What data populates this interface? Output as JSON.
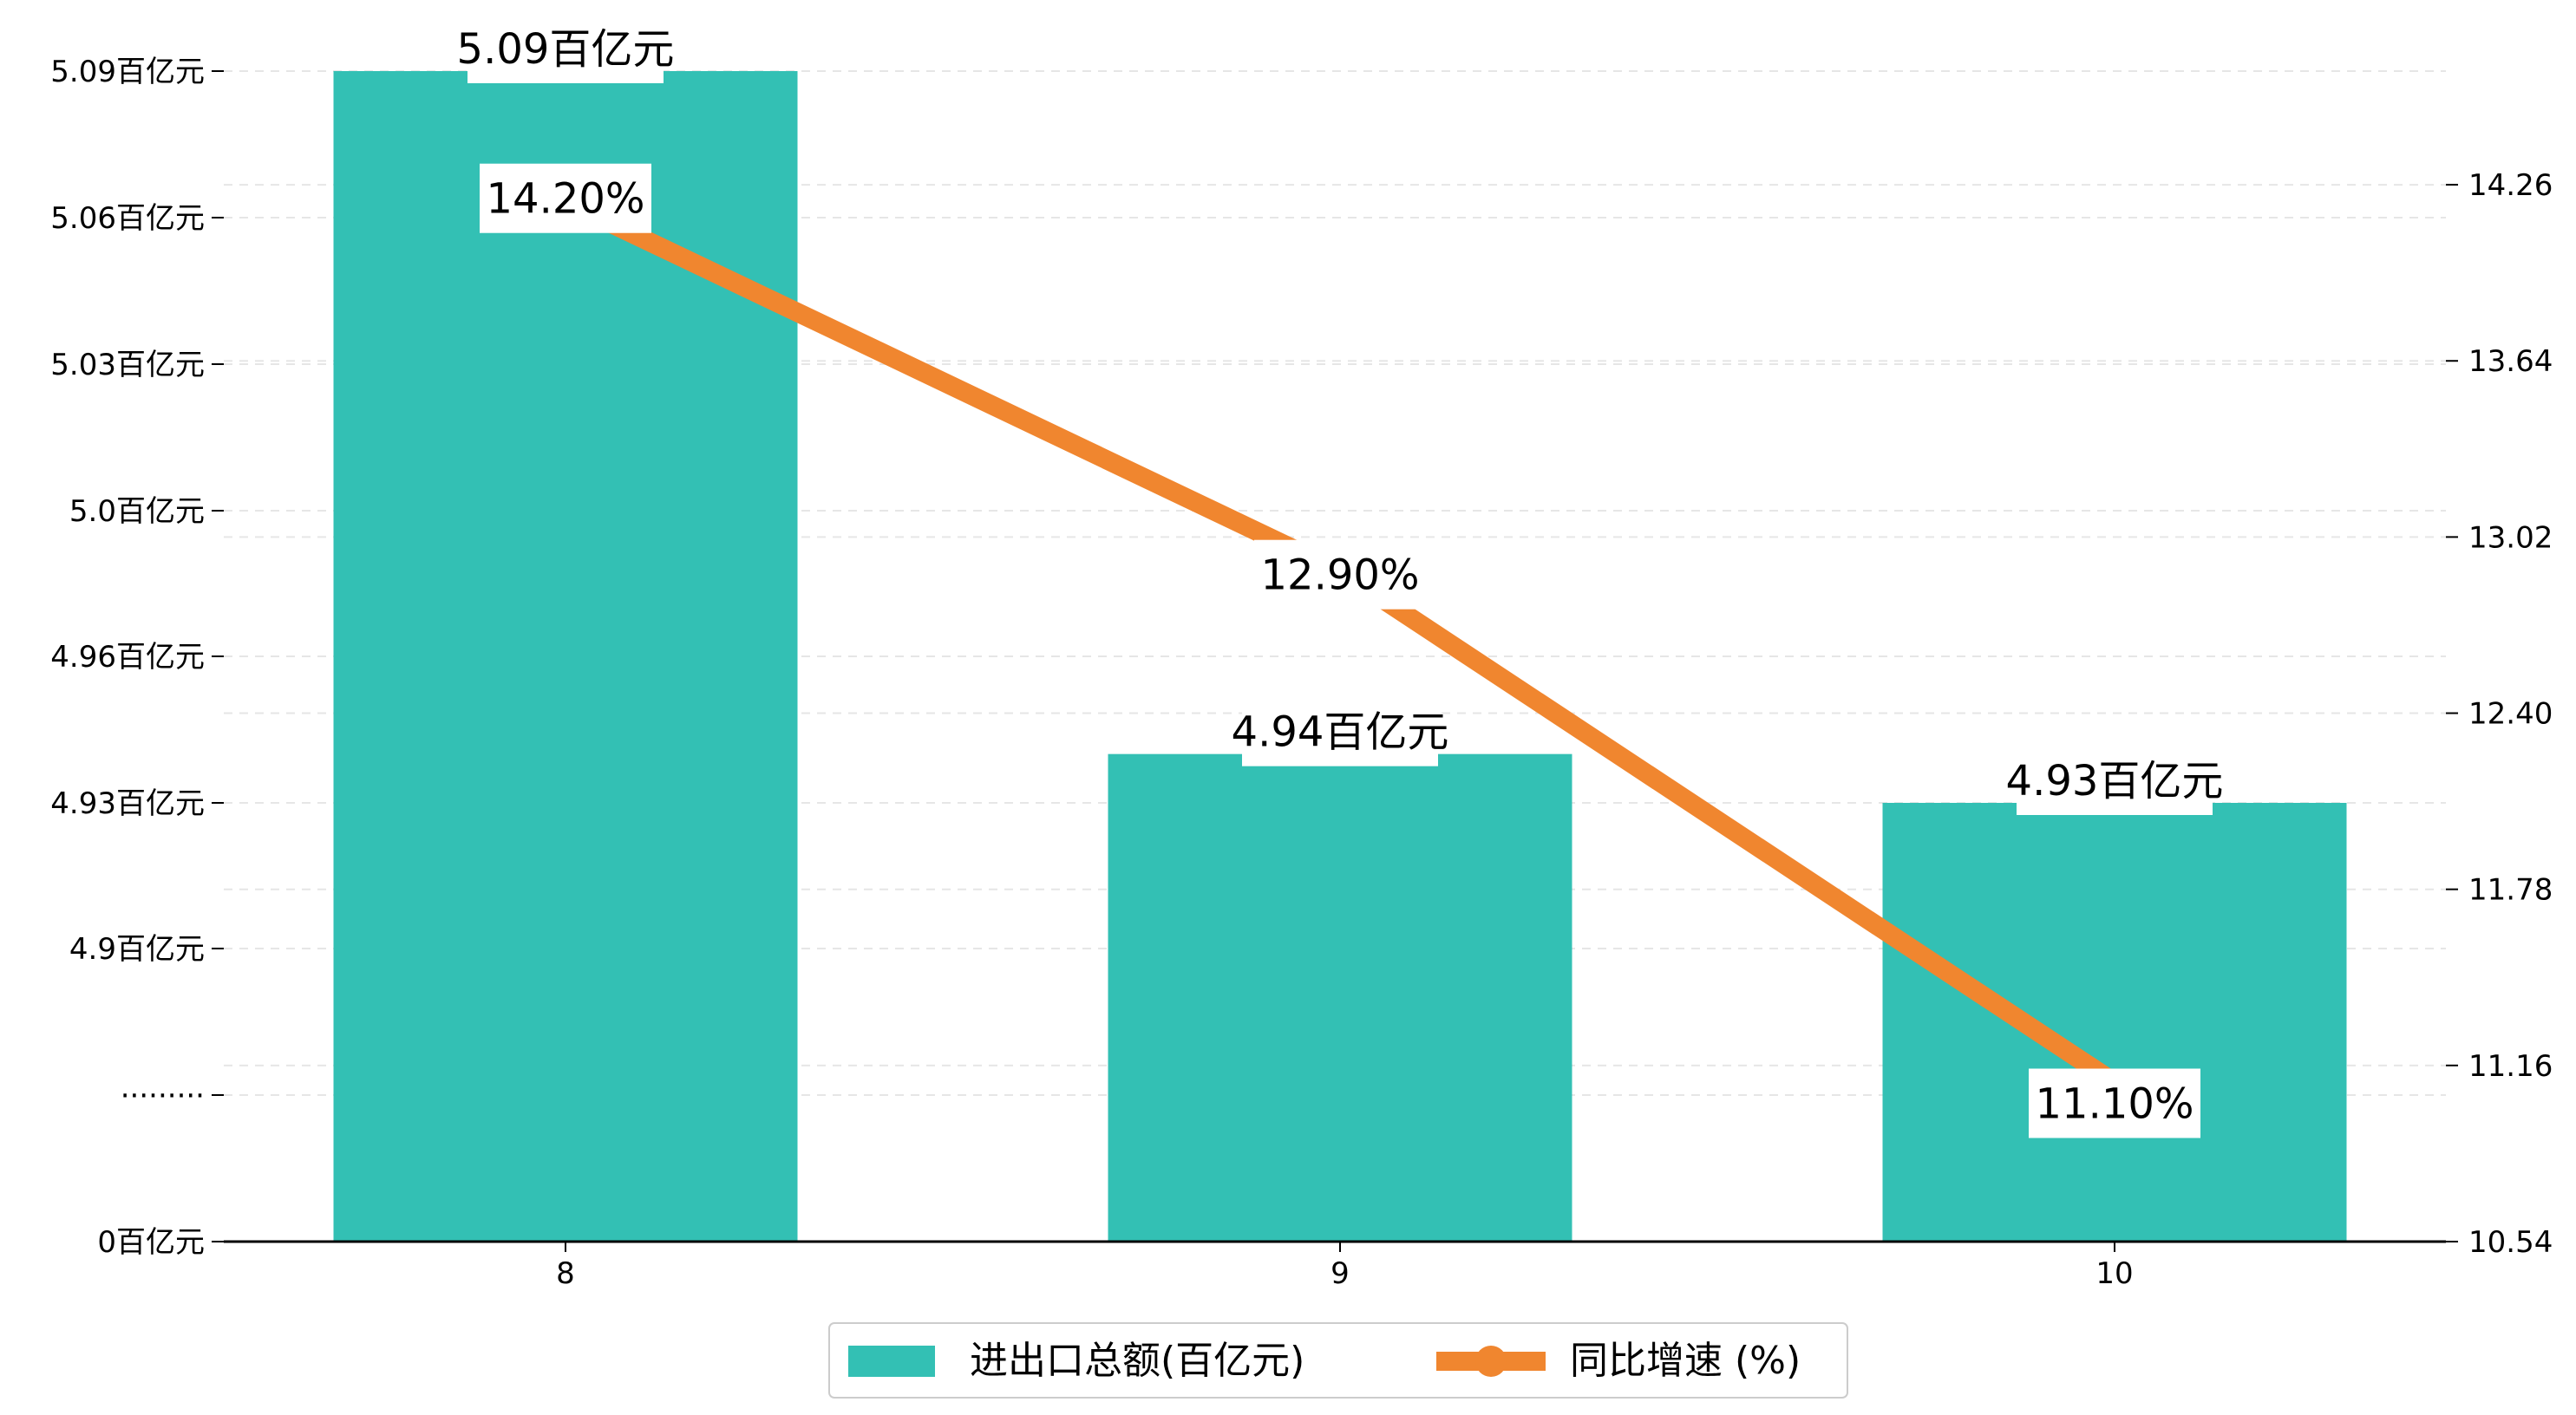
{
  "chart_data": {
    "type": "bar+line",
    "categories": [
      "8",
      "9",
      "10"
    ],
    "series": [
      {
        "name": "进出口总额(百亿元)",
        "kind": "bar",
        "axis": "left",
        "values": [
          5.09,
          4.94,
          4.93
        ],
        "labels": [
          "5.09百亿元",
          "4.94百亿元",
          "4.93百亿元"
        ],
        "color": "#33c0b4"
      },
      {
        "name": "同比增速 (%)",
        "kind": "line",
        "axis": "right",
        "values": [
          14.2,
          12.9,
          11.1
        ],
        "labels": [
          "14.20%",
          "12.90%",
          "11.10%"
        ],
        "color": "#f0862f"
      }
    ],
    "left_axis": {
      "ticks": [
        {
          "label": "0百亿元"
        },
        {
          "label": "·········"
        },
        {
          "label": "4.9百亿元",
          "value": 4.9
        },
        {
          "label": "4.93百亿元",
          "value": 4.93
        },
        {
          "label": "4.96百亿元",
          "value": 4.96
        },
        {
          "label": "5.0百亿元",
          "value": 4.995
        },
        {
          "label": "5.03百亿元",
          "value": 5.03
        },
        {
          "label": "5.06百亿元",
          "value": 5.06
        },
        {
          "label": "5.09百亿元",
          "value": 5.09
        }
      ],
      "broken": true
    },
    "right_axis": {
      "range": [
        10.54,
        14.66
      ],
      "ticks": [
        "10.54",
        "11.16",
        "11.78",
        "12.40",
        "13.02",
        "13.64",
        "14.26"
      ]
    },
    "grid": "horizontal-dashed",
    "legend": "bottom-center"
  }
}
